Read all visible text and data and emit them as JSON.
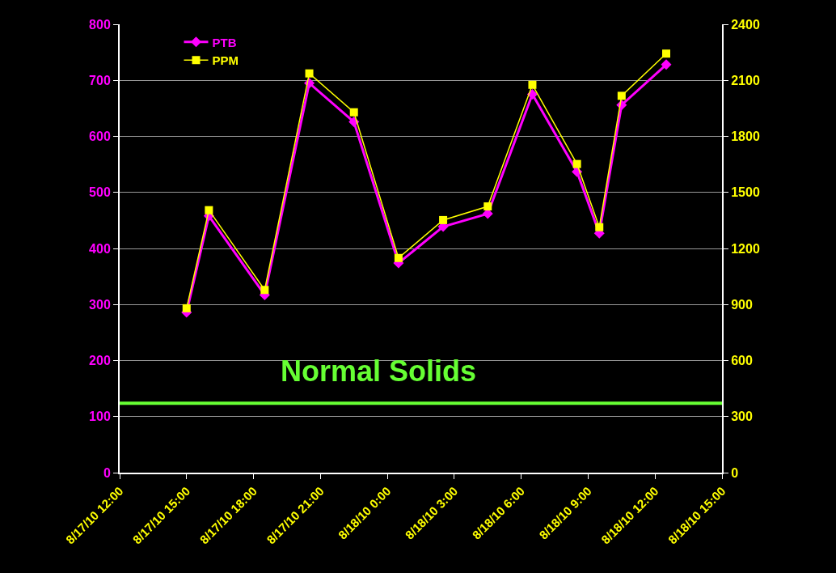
{
  "chart_data": {
    "type": "line",
    "x": [
      "--08-17T15:00",
      "--08-17T16:00",
      "--08-17T18:30",
      "--08-17T20:30",
      "--08-17T22:30",
      "--08-18T00:30",
      "--08-18T02:30",
      "--08-18T04:30",
      "--08-18T06:30",
      "--08-18T08:30",
      "--08-18T09:30",
      "--08-18T10:30",
      "--08-18T12:30"
    ],
    "series": [
      {
        "name": "PTB",
        "color": "#ff00ff",
        "marker": "diamond",
        "values": [
          286,
          458,
          317,
          695,
          626,
          374,
          439,
          462,
          675,
          537,
          427,
          656,
          728
        ]
      },
      {
        "name": "PPM",
        "color": "#ffff00",
        "marker": "square",
        "axis": "y2",
        "values": [
          880,
          1405,
          978,
          2137,
          1929,
          1149,
          1352,
          1425,
          2076,
          1652,
          1314,
          2017,
          2243
        ]
      }
    ],
    "xlim": [
      "--08-17T12:00",
      "--08-18T15:00"
    ],
    "xticks": [
      {
        "value": "--08-17T12:00",
        "label": "8/17/10 12:00"
      },
      {
        "value": "--08-17T15:00",
        "label": "8/17/10 15:00"
      },
      {
        "value": "--08-17T18:00",
        "label": "8/17/10 18:00"
      },
      {
        "value": "--08-17T21:00",
        "label": "8/17/10 21:00"
      },
      {
        "value": "--08-18T00:00",
        "label": "8/18/10 0:00"
      },
      {
        "value": "--08-18T03:00",
        "label": "8/18/10 3:00"
      },
      {
        "value": "--08-18T06:00",
        "label": "8/18/10 6:00"
      },
      {
        "value": "--08-18T09:00",
        "label": "8/18/10 9:00"
      },
      {
        "value": "--08-18T12:00",
        "label": "8/18/10 12:00"
      },
      {
        "value": "--08-18T15:00",
        "label": "8/18/10 15:00"
      }
    ],
    "ylim": [
      0,
      800
    ],
    "yticks": [
      0,
      100,
      200,
      300,
      400,
      500,
      600,
      700,
      800
    ],
    "y2lim": [
      0,
      2400
    ],
    "y2ticks": [
      0,
      300,
      600,
      900,
      1200,
      1500,
      1800,
      2100,
      2400
    ],
    "ref_lines": [
      {
        "axis": "y",
        "value": 124,
        "label": "Normal Solids",
        "color": "#66ff33"
      }
    ],
    "grid": "y",
    "legend": "top left"
  }
}
